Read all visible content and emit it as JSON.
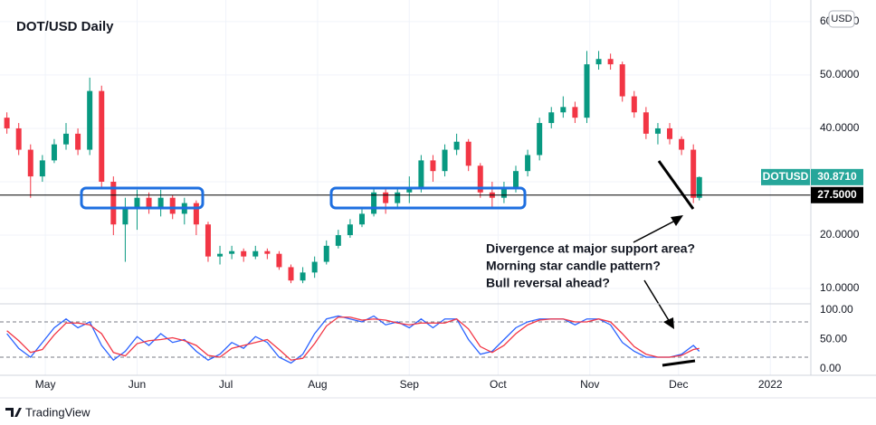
{
  "chart_data": [
    {
      "type": "candlestick",
      "title": "DOT/USD Daily",
      "currency": "USD",
      "x": [
        -13,
        -9,
        -5,
        -1,
        3,
        7,
        11,
        15,
        19,
        23,
        27,
        31,
        35,
        39,
        43,
        47,
        51,
        55,
        59,
        63,
        67,
        71,
        75,
        79,
        83,
        87,
        91,
        95,
        99,
        103,
        107,
        111,
        115,
        119,
        123,
        127,
        131,
        135,
        139,
        143,
        147,
        151,
        155,
        159,
        163,
        167,
        171,
        175,
        179,
        183,
        187,
        191,
        195,
        199,
        203,
        207,
        211,
        215,
        219,
        221
      ],
      "open": [
        42,
        40,
        36,
        31,
        34,
        37,
        39,
        36,
        47,
        30,
        22,
        25,
        27,
        25,
        27,
        24,
        26,
        22,
        16,
        16.5,
        17,
        16,
        17,
        16.5,
        14,
        11.5,
        13,
        15,
        18,
        20,
        22,
        24,
        28,
        26,
        28,
        29,
        34,
        32,
        36,
        37.5,
        33,
        28,
        27,
        29,
        32,
        35,
        41,
        43,
        44,
        42,
        52,
        53,
        52,
        46,
        43,
        39,
        40,
        38,
        36,
        27
      ],
      "high": [
        43,
        41,
        37,
        35,
        38,
        41,
        40,
        49.5,
        48,
        31,
        27,
        28.5,
        28,
        28.5,
        27.5,
        27,
        26.5,
        22.5,
        18,
        18,
        17.5,
        18,
        17.5,
        17,
        14.5,
        14,
        16,
        19,
        21,
        23,
        25,
        29,
        29,
        29,
        31,
        35,
        35,
        37,
        39,
        38,
        33.5,
        30,
        30,
        33,
        36,
        42,
        44,
        46,
        45,
        54.5,
        54.5,
        54,
        52.5,
        47,
        44,
        41,
        41,
        38.5,
        37,
        31
      ],
      "low": [
        39,
        35,
        27,
        30,
        33.5,
        36,
        35,
        35,
        29,
        20,
        15,
        21,
        24,
        23.5,
        23,
        22,
        20,
        15,
        14.5,
        15.5,
        15,
        15.5,
        15.5,
        13.5,
        11,
        11,
        12,
        14.5,
        17.5,
        19.5,
        21.5,
        23.5,
        24,
        25,
        26,
        28,
        30,
        31,
        35,
        32,
        27,
        25,
        26,
        28,
        31,
        34,
        40,
        42,
        41,
        41,
        51,
        51,
        45,
        42,
        38,
        37,
        37,
        35,
        26,
        26.5
      ],
      "close": [
        40,
        36,
        31,
        34,
        37,
        39,
        36,
        47,
        30,
        22,
        25,
        27,
        25,
        27,
        24,
        26,
        22,
        16,
        16.5,
        17,
        16,
        17,
        16.5,
        14,
        11.5,
        13,
        15,
        18,
        20,
        22,
        24,
        28,
        26,
        28,
        29,
        34,
        32,
        36,
        37.5,
        33,
        28,
        27,
        29,
        32,
        35,
        41,
        43,
        44,
        42,
        52,
        53,
        52,
        46,
        43,
        39,
        40,
        38,
        36,
        27,
        30.871
      ],
      "up_color": "#089981",
      "down_color": "#f23645",
      "xlim": [
        -13.8,
        258.7
      ],
      "xticks": [
        {
          "value": 0,
          "label": "May"
        },
        {
          "value": 31,
          "label": "Jun"
        },
        {
          "value": 61,
          "label": "Jul"
        },
        {
          "value": 92,
          "label": "Aug"
        },
        {
          "value": 123,
          "label": "Sep"
        },
        {
          "value": 153,
          "label": "Oct"
        },
        {
          "value": 184,
          "label": "Nov"
        },
        {
          "value": 214,
          "label": "Dec"
        },
        {
          "value": 245,
          "label": "2022"
        }
      ],
      "ylim": [
        7.3,
        63.2
      ],
      "yticks": [
        {
          "value": 10,
          "label": "10.0000"
        },
        {
          "value": 20,
          "label": "20.0000"
        },
        {
          "value": 30,
          "label": "30.0000"
        },
        {
          "value": 40,
          "label": "40.0000"
        },
        {
          "value": 50,
          "label": "50.0000"
        },
        {
          "value": 60,
          "label": "60.0000"
        }
      ],
      "grid": true,
      "price_tag": {
        "name": "DOTUSD",
        "value": 30.871,
        "label": "30.8710",
        "color": "#26a69a"
      },
      "support_line": {
        "value": 27.5,
        "label": "27.5000",
        "color": "#000000"
      },
      "annotations": [
        "Divergence at major support area?",
        "Morning star candle pattern?",
        "Bull reversal ahead?"
      ]
    },
    {
      "type": "line",
      "series": [
        {
          "color": "#2962ff",
          "values": [
            60,
            35,
            20,
            45,
            70,
            85,
            70,
            80,
            40,
            15,
            30,
            55,
            40,
            60,
            45,
            50,
            30,
            15,
            25,
            45,
            35,
            55,
            45,
            20,
            10,
            25,
            60,
            85,
            90,
            85,
            80,
            90,
            75,
            80,
            70,
            85,
            70,
            85,
            85,
            50,
            25,
            30,
            50,
            70,
            80,
            85,
            85,
            85,
            75,
            85,
            85,
            75,
            45,
            30,
            20,
            20,
            20,
            25,
            40,
            30
          ]
        },
        {
          "color": "#f23645",
          "values": [
            65,
            48,
            28,
            33,
            58,
            78,
            78,
            75,
            60,
            28,
            22,
            43,
            48,
            50,
            53,
            48,
            40,
            23,
            20,
            35,
            40,
            45,
            50,
            33,
            15,
            18,
            43,
            73,
            88,
            88,
            83,
            85,
            83,
            78,
            75,
            78,
            78,
            78,
            85,
            68,
            38,
            28,
            40,
            60,
            75,
            83,
            85,
            85,
            80,
            80,
            85,
            80,
            60,
            38,
            25,
            20,
            20,
            23,
            33,
            35
          ]
        }
      ],
      "ylim": [
        -10.8,
        109.2
      ],
      "yticks": [
        {
          "value": 0,
          "label": "0.00"
        },
        {
          "value": 50,
          "label": "50.00"
        },
        {
          "value": 100,
          "label": "100.00"
        }
      ],
      "levels": [
        80,
        20
      ]
    }
  ],
  "footer": "TradingView"
}
